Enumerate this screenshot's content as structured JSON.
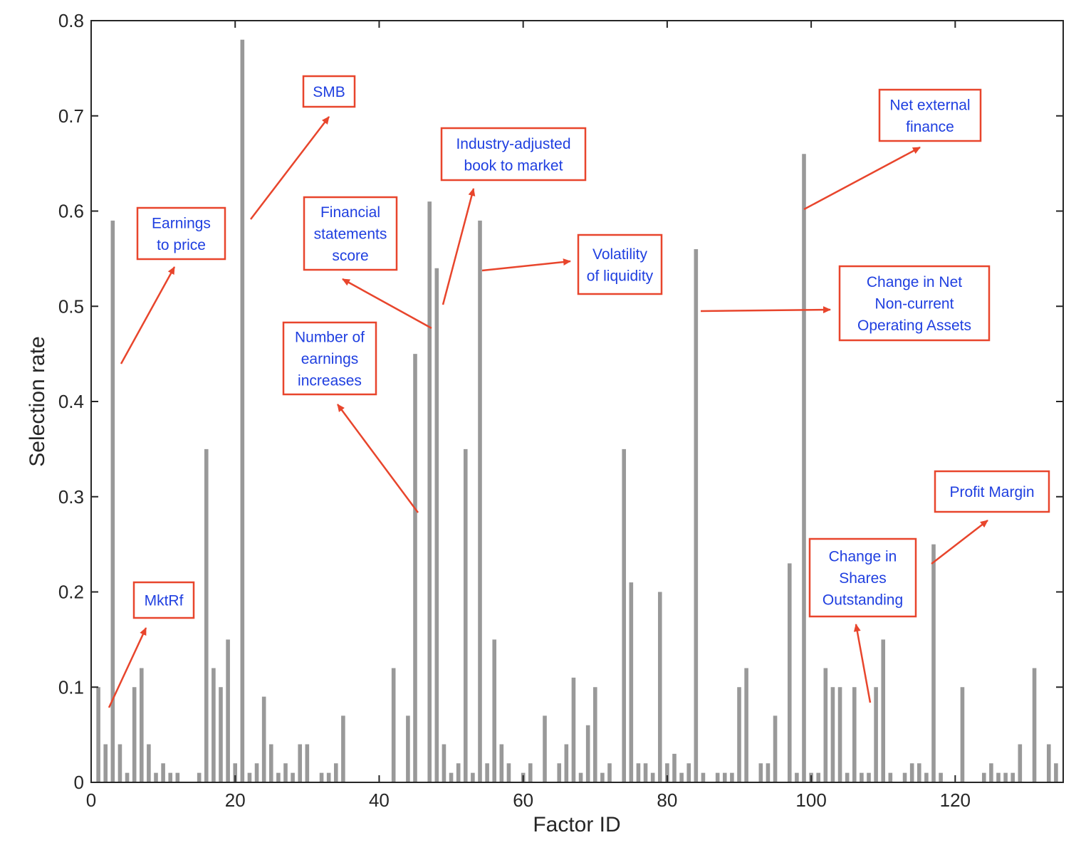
{
  "chart_data": {
    "type": "bar",
    "xlabel": "Factor ID",
    "ylabel": "Selection rate",
    "xlim": [
      0,
      135
    ],
    "ylim": [
      0,
      0.8
    ],
    "xticks": [
      0,
      20,
      40,
      60,
      80,
      100,
      120
    ],
    "yticks": [
      0,
      0.1,
      0.2,
      0.3,
      0.4,
      0.5,
      0.6,
      0.7,
      0.8
    ],
    "grid": false,
    "bar_color": "#999999",
    "x": [
      1,
      2,
      3,
      4,
      5,
      6,
      7,
      8,
      9,
      10,
      11,
      12,
      13,
      14,
      15,
      16,
      17,
      18,
      19,
      20,
      21,
      22,
      23,
      24,
      25,
      26,
      27,
      28,
      29,
      30,
      31,
      32,
      33,
      34,
      35,
      36,
      37,
      38,
      39,
      40,
      41,
      42,
      43,
      44,
      45,
      46,
      47,
      48,
      49,
      50,
      51,
      52,
      53,
      54,
      55,
      56,
      57,
      58,
      59,
      60,
      61,
      62,
      63,
      64,
      65,
      66,
      67,
      68,
      69,
      70,
      71,
      72,
      73,
      74,
      75,
      76,
      77,
      78,
      79,
      80,
      81,
      82,
      83,
      84,
      85,
      86,
      87,
      88,
      89,
      90,
      91,
      92,
      93,
      94,
      95,
      96,
      97,
      98,
      99,
      100,
      101,
      102,
      103,
      104,
      105,
      106,
      107,
      108,
      109,
      110,
      111,
      112,
      113,
      114,
      115,
      116,
      117,
      118,
      119,
      120,
      121,
      122,
      123,
      124,
      125,
      126,
      127,
      128,
      129,
      130,
      131,
      132,
      133,
      134
    ],
    "values": [
      0.1,
      0.04,
      0.59,
      0.04,
      0.01,
      0.1,
      0.12,
      0.04,
      0.01,
      0.02,
      0.01,
      0.01,
      0,
      0,
      0.01,
      0.35,
      0.12,
      0.1,
      0.15,
      0.02,
      0.78,
      0.01,
      0.02,
      0.09,
      0.04,
      0.01,
      0.02,
      0.01,
      0.04,
      0.04,
      0,
      0.01,
      0.01,
      0.02,
      0.07,
      0,
      0,
      0,
      0,
      0,
      0,
      0.12,
      0,
      0.07,
      0.45,
      0,
      0.61,
      0.54,
      0.04,
      0.01,
      0.02,
      0.35,
      0.01,
      0.59,
      0.02,
      0.15,
      0.04,
      0.02,
      0,
      0.01,
      0.02,
      0,
      0.07,
      0,
      0.02,
      0.04,
      0.11,
      0.01,
      0.06,
      0.1,
      0.01,
      0.02,
      0,
      0.35,
      0.21,
      0.02,
      0.02,
      0.01,
      0.2,
      0.02,
      0.03,
      0.01,
      0.02,
      0.56,
      0.01,
      0,
      0.01,
      0.01,
      0.01,
      0.1,
      0.12,
      0,
      0.02,
      0.02,
      0.07,
      0,
      0.23,
      0.01,
      0.66,
      0.01,
      0.01,
      0.12,
      0.1,
      0.1,
      0.01,
      0.1,
      0.01,
      0.01,
      0.1,
      0.15,
      0.01,
      0,
      0.01,
      0.02,
      0.02,
      0.01,
      0.25,
      0.01,
      0,
      0,
      0.1,
      0,
      0,
      0.01,
      0.02,
      0.01,
      0.01,
      0.01,
      0.04,
      0,
      0.12,
      0,
      0.04,
      0.02
    ],
    "annotations": [
      {
        "lines": [
          "MktRf"
        ],
        "factor": 1
      },
      {
        "lines": [
          "Earnings",
          "to price"
        ],
        "factor": 3
      },
      {
        "lines": [
          "SMB"
        ],
        "factor": 21
      },
      {
        "lines": [
          "Number of",
          "earnings",
          "increases"
        ],
        "factor": 45
      },
      {
        "lines": [
          "Financial",
          "statements",
          "score"
        ],
        "factor": 47
      },
      {
        "lines": [
          "Industry-adjusted",
          "book to market"
        ],
        "factor": 48
      },
      {
        "lines": [
          "Volatility",
          "of liquidity"
        ],
        "factor": 54
      },
      {
        "lines": [
          "Change in Net",
          "Non-current",
          "Operating Assets"
        ],
        "factor": 84
      },
      {
        "lines": [
          "Net external",
          "finance"
        ],
        "factor": 99
      },
      {
        "lines": [
          "Change in",
          "Shares",
          "Outstanding"
        ],
        "factor": 109
      },
      {
        "lines": [
          "Profit Margin"
        ],
        "factor": 117
      }
    ],
    "annotation_colors": {
      "box": "#e8452c",
      "text": "#1f3fe0",
      "arrow": "#e8452c"
    }
  }
}
